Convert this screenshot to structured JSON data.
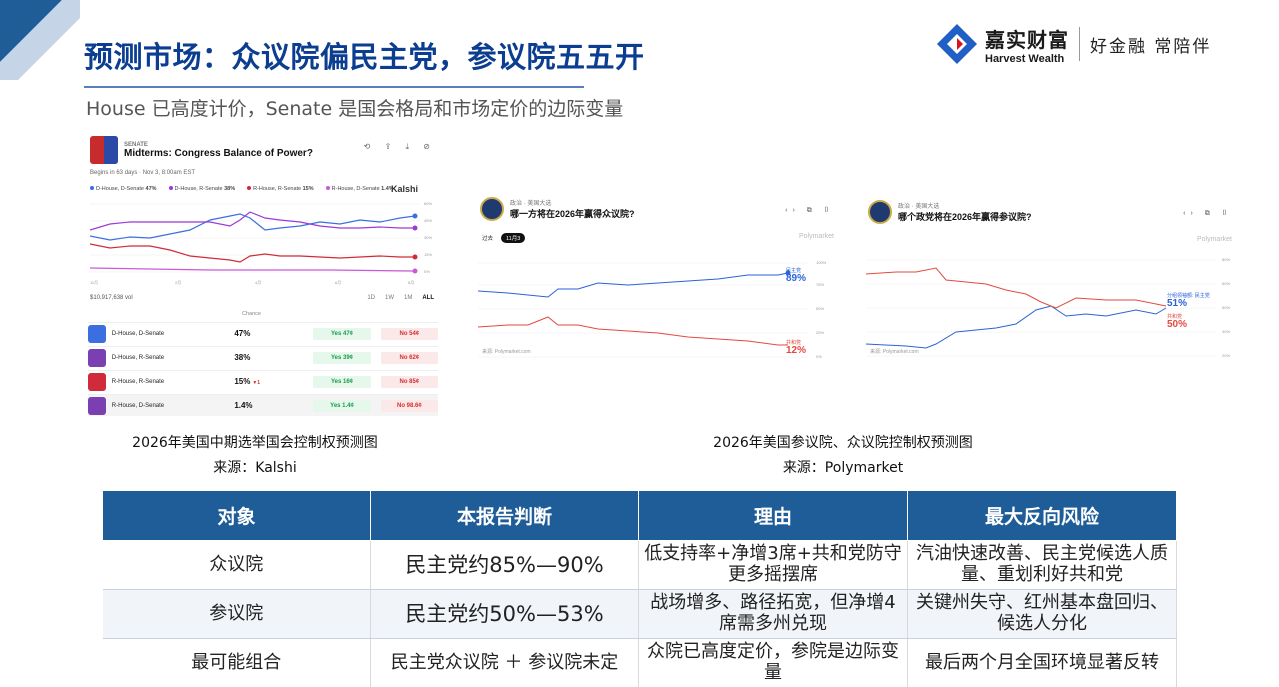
{
  "header": {
    "title": "预测市场：众议院偏民主党，参议院五五开",
    "subtitle": "House 已高度计价，Senate 是国会格局和市场定价的边际变量"
  },
  "logo": {
    "name_cn": "嘉实财富",
    "name_en": "Harvest Wealth",
    "slogan": "好金融 常陪伴",
    "accent": "#1f5fc6",
    "secondary": "#d4161f"
  },
  "kalshi": {
    "tag": "SENATE",
    "question": "Midterms: Congress Balance of Power?",
    "begins": "Begins in 63 days · Nov 3, 8:00am EST",
    "brand": "Kalshi",
    "legend": [
      {
        "label": "D-House, D-Senate",
        "value": "47%",
        "color": "#3b6fe0"
      },
      {
        "label": "D-House, R-Senate",
        "value": "38%",
        "color": "#9a3ad8"
      },
      {
        "label": "R-House, R-Senate",
        "value": "15%",
        "color": "#d02b3a"
      },
      {
        "label": "R-House, D-Senate",
        "value": "1.4%",
        "color": "#c85ad8"
      }
    ],
    "volume": "$10,917,638 vol",
    "ranges": [
      "1D",
      "1W",
      "1M",
      "ALL"
    ],
    "chance_header": "Chance",
    "rows": [
      {
        "name": "D-House, D-Senate",
        "chance": "47%",
        "delta": "",
        "yes": "Yes 47¢",
        "no": "No 54¢",
        "color": "#3b6fe0"
      },
      {
        "name": "D-House, R-Senate",
        "chance": "38%",
        "delta": "",
        "yes": "Yes 39¢",
        "no": "No 62¢",
        "color": "#7a3fb0"
      },
      {
        "name": "R-House, R-Senate",
        "chance": "15%",
        "delta": "▼1",
        "yes": "Yes 16¢",
        "no": "No 85¢",
        "color": "#d02b3a"
      },
      {
        "name": "R-House, D-Senate",
        "chance": "1.4%",
        "delta": "",
        "yes": "Yes 1.4¢",
        "no": "No 98.6¢",
        "color": "#7a3fb0"
      }
    ]
  },
  "pm_house": {
    "crumb": "政治 · 美国大选",
    "question": "哪一方将在2026年赢得众议院?",
    "brand": "Polymarket",
    "filter_all": "过去",
    "filter_active": "11月3",
    "dem_label": "民主党",
    "dem_value": "89%",
    "rep_label": "共和党",
    "rep_value": "12%",
    "source": "来源: Polymarket.com"
  },
  "pm_senate": {
    "crumb": "政治 · 美国大选",
    "question": "哪个政党将在2026年赢得参议院?",
    "brand": "Polymarket",
    "dem_label": "分组领袖额: 民主党",
    "dem_value": "51%",
    "rep_label": "共和党",
    "rep_value": "50%",
    "source": "来源: Polymarket.com"
  },
  "captions": {
    "left_title": "2026年美国中期选举国会控制权预测图",
    "left_source": "来源：Kalshi",
    "right_title": "2026年美国参议院、众议院控制权预测图",
    "right_source": "来源：Polymarket"
  },
  "table": {
    "headers": [
      "对象",
      "本报告判断",
      "理由",
      "最大反向风险"
    ],
    "rows": [
      [
        "众议院",
        "民主党约85%—90%",
        "低支持率+净增3席+共和党防守更多摇摆席",
        "汽油快速改善、民主党候选人质量、重划利好共和党"
      ],
      [
        "参议院",
        "民主党约50%—53%",
        "战场增多、路径拓宽，但净增4席需多州兑现",
        "关键州失守、红州基本盘回归、候选人分化"
      ],
      [
        "最可能组合",
        "民主党众议院 ＋ 参议院未定",
        "众院已高度定价，参院是边际变量",
        "最后两个月全国环境显著反转"
      ]
    ]
  }
}
